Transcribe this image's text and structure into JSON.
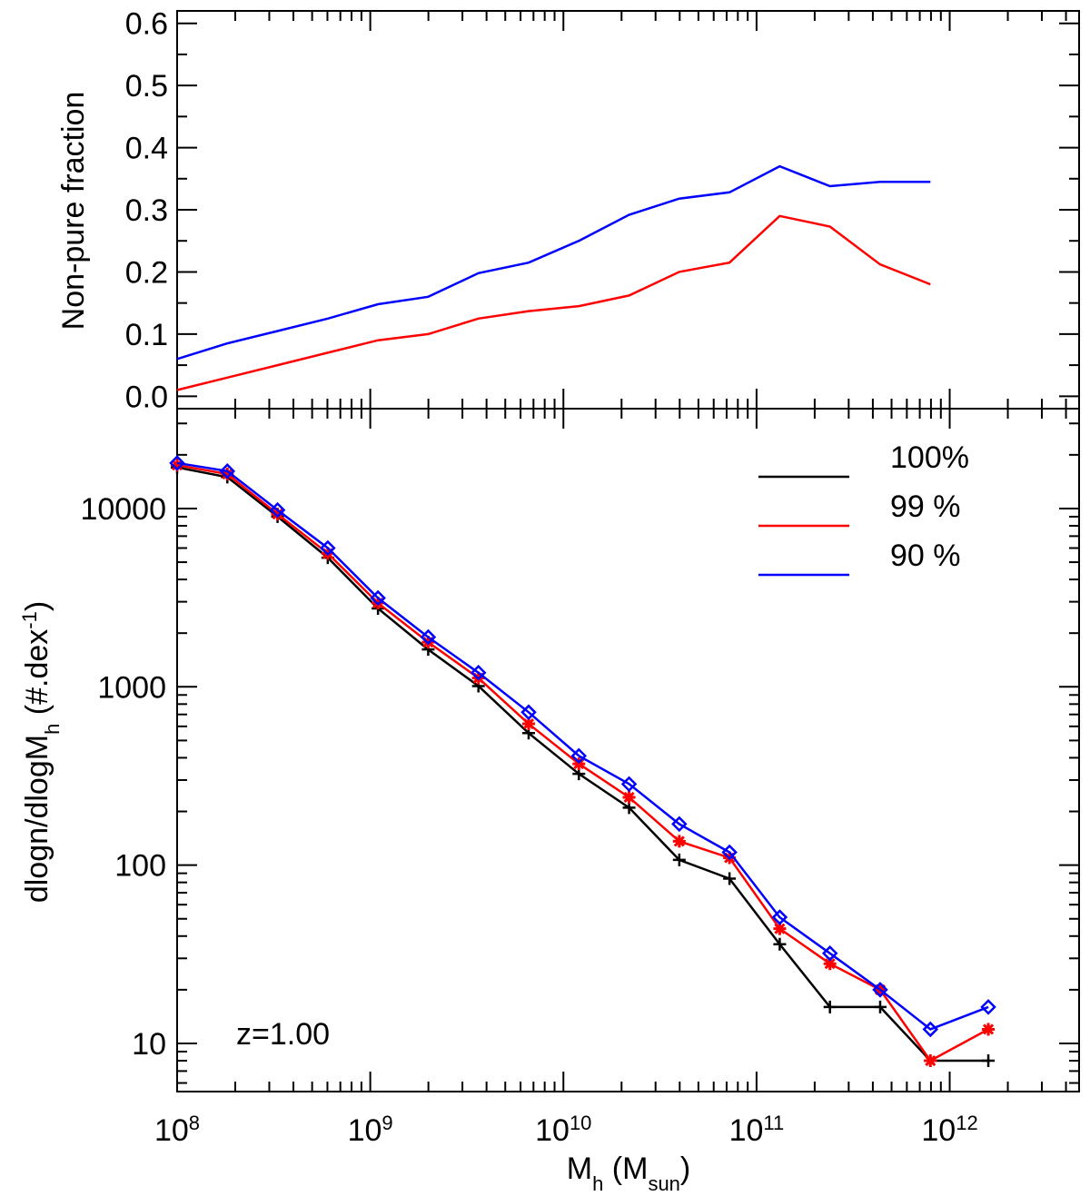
{
  "chart_data": [
    {
      "type": "line",
      "panel": "top",
      "title": "",
      "xlabel": "",
      "ylabel": "Non-pure fraction",
      "xscale": "log",
      "xlim_log10": [
        8.0,
        12.67
      ],
      "ylim": [
        -0.02,
        0.62
      ],
      "yticks": [
        0.0,
        0.1,
        0.2,
        0.3,
        0.4,
        0.5,
        0.6
      ],
      "ytick_labels": [
        "0.0",
        "0.1",
        "0.2",
        "0.3",
        "0.4",
        "0.5",
        "0.6"
      ],
      "x_log10": [
        8.0,
        8.26,
        8.52,
        8.78,
        9.04,
        9.3,
        9.56,
        9.82,
        10.08,
        10.34,
        10.6,
        10.86,
        11.12,
        11.38,
        11.64,
        11.9
      ],
      "series": [
        {
          "name": "99 %",
          "color": "#ff0000",
          "values": [
            0.01,
            0.03,
            0.05,
            0.07,
            0.09,
            0.1,
            0.125,
            0.137,
            0.145,
            0.162,
            0.2,
            0.215,
            0.29,
            0.273,
            0.212,
            0.18
          ]
        },
        {
          "name": "90 %",
          "color": "#0000ff",
          "values": [
            0.06,
            0.085,
            0.105,
            0.125,
            0.148,
            0.16,
            0.198,
            0.215,
            0.25,
            0.292,
            0.318,
            0.328,
            0.37,
            0.338,
            0.345,
            0.345
          ]
        }
      ]
    },
    {
      "type": "line",
      "panel": "bottom",
      "title": "",
      "xlabel": "M",
      "xlabel_sub": "h",
      "xlabel_unit": "(M",
      "xlabel_unit_sub": "sun",
      "xlabel_unit_close": ")",
      "ylabel": "dlogn/dlogM",
      "ylabel_sub": "h",
      "ylabel_unit": "(#.dex",
      "ylabel_unit_sup": "-1",
      "ylabel_unit_close": ")",
      "xscale": "log",
      "yscale": "log",
      "xlim_log10": [
        8.0,
        12.67
      ],
      "ylim_log10": [
        0.73,
        4.56
      ],
      "xtick_base": "10",
      "xtick_exponents": [
        "8",
        "9",
        "10",
        "11",
        "12"
      ],
      "ytick_labels": [
        "10",
        "100",
        "1000",
        "10000"
      ],
      "yticks": [
        10,
        100,
        1000,
        10000
      ],
      "annotation": "z=1.00",
      "legend_position": "top-right",
      "x_log10": [
        8.0,
        8.26,
        8.52,
        8.78,
        9.04,
        9.3,
        9.56,
        9.82,
        10.08,
        10.34,
        10.6,
        10.86,
        11.12,
        11.38,
        11.64,
        11.9,
        12.2
      ],
      "series": [
        {
          "name": "100%",
          "color": "#000000",
          "marker": "plus",
          "values": [
            17000,
            15000,
            9000,
            5300,
            2750,
            1620,
            1010,
            550,
            325,
            210,
            107,
            84,
            36,
            16,
            16,
            8,
            8
          ]
        },
        {
          "name": "99 %",
          "color": "#ff0000",
          "marker": "asterisk",
          "values": [
            17500,
            15600,
            9300,
            5600,
            2950,
            1780,
            1120,
            620,
            370,
            240,
            136,
            110,
            44,
            28,
            20,
            8,
            12
          ]
        },
        {
          "name": "90 %",
          "color": "#0000ff",
          "marker": "diamond",
          "values": [
            18000,
            16200,
            9800,
            6000,
            3150,
            1900,
            1200,
            720,
            410,
            285,
            170,
            118,
            51,
            32,
            20,
            12,
            16
          ]
        }
      ]
    }
  ]
}
